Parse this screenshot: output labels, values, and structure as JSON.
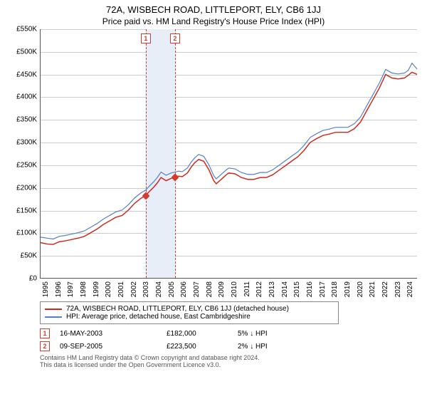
{
  "title_line1": "72A, WISBECH ROAD, LITTLEPORT, ELY, CB6 1JJ",
  "title_line2": "Price paid vs. HM Land Registry's House Price Index (HPI)",
  "chart": {
    "type": "line",
    "x_range": [
      1995,
      2025
    ],
    "y_range": [
      0,
      550000
    ],
    "y_ticks": [
      0,
      50000,
      100000,
      150000,
      200000,
      250000,
      300000,
      350000,
      400000,
      450000,
      500000,
      550000
    ],
    "y_tick_labels": [
      "£0",
      "£50K",
      "£100K",
      "£150K",
      "£200K",
      "£250K",
      "£300K",
      "£350K",
      "£400K",
      "£450K",
      "£500K",
      "£550K"
    ],
    "x_ticks": [
      1995,
      1996,
      1997,
      1998,
      1999,
      2000,
      2001,
      2002,
      2003,
      2004,
      2005,
      2006,
      2007,
      2008,
      2009,
      2010,
      2011,
      2012,
      2013,
      2014,
      2015,
      2016,
      2017,
      2018,
      2019,
      2020,
      2021,
      2022,
      2023,
      2024
    ],
    "grid_color": "#cccccc",
    "background_color": "#ffffff",
    "band": {
      "x_start": 2003.37,
      "x_end": 2005.69,
      "color": "#e8eef7"
    },
    "series": [
      {
        "label": "72A, WISBECH ROAD, LITTLEPORT, ELY, CB6 1JJ (detached house)",
        "color": "#cc2a1f",
        "width": 1.5,
        "data": [
          [
            1995.0,
            78
          ],
          [
            1995.5,
            75
          ],
          [
            1996.0,
            74
          ],
          [
            1996.5,
            80
          ],
          [
            1997.0,
            82
          ],
          [
            1997.5,
            85
          ],
          [
            1998.0,
            88
          ],
          [
            1998.5,
            92
          ],
          [
            1999.0,
            100
          ],
          [
            1999.5,
            108
          ],
          [
            2000.0,
            118
          ],
          [
            2000.5,
            126
          ],
          [
            2001.0,
            134
          ],
          [
            2001.5,
            138
          ],
          [
            2002.0,
            150
          ],
          [
            2002.5,
            165
          ],
          [
            2003.0,
            176
          ],
          [
            2003.37,
            182
          ],
          [
            2003.7,
            192
          ],
          [
            2004.0,
            200
          ],
          [
            2004.3,
            210
          ],
          [
            2004.6,
            222
          ],
          [
            2005.0,
            215
          ],
          [
            2005.4,
            220
          ],
          [
            2005.69,
            223.5
          ],
          [
            2006.0,
            225
          ],
          [
            2006.3,
            224
          ],
          [
            2006.7,
            232
          ],
          [
            2007.0,
            245
          ],
          [
            2007.3,
            255
          ],
          [
            2007.6,
            262
          ],
          [
            2008.0,
            258
          ],
          [
            2008.4,
            240
          ],
          [
            2008.8,
            215
          ],
          [
            2009.0,
            208
          ],
          [
            2009.4,
            218
          ],
          [
            2009.8,
            228
          ],
          [
            2010.0,
            232
          ],
          [
            2010.5,
            230
          ],
          [
            2011.0,
            222
          ],
          [
            2011.5,
            218
          ],
          [
            2012.0,
            218
          ],
          [
            2012.5,
            222
          ],
          [
            2013.0,
            222
          ],
          [
            2013.5,
            228
          ],
          [
            2014.0,
            238
          ],
          [
            2014.5,
            248
          ],
          [
            2015.0,
            258
          ],
          [
            2015.5,
            268
          ],
          [
            2016.0,
            282
          ],
          [
            2016.5,
            300
          ],
          [
            2017.0,
            308
          ],
          [
            2017.5,
            315
          ],
          [
            2018.0,
            318
          ],
          [
            2018.5,
            322
          ],
          [
            2019.0,
            322
          ],
          [
            2019.5,
            322
          ],
          [
            2020.0,
            330
          ],
          [
            2020.5,
            345
          ],
          [
            2021.0,
            370
          ],
          [
            2021.5,
            395
          ],
          [
            2022.0,
            420
          ],
          [
            2022.5,
            450
          ],
          [
            2023.0,
            442
          ],
          [
            2023.5,
            440
          ],
          [
            2024.0,
            442
          ],
          [
            2024.3,
            448
          ],
          [
            2024.6,
            455
          ],
          [
            2025.0,
            450
          ]
        ]
      },
      {
        "label": "HPI: Average price, detached house, East Cambridgeshire",
        "color": "#5a7fc4",
        "width": 1.2,
        "data": [
          [
            1995.0,
            90
          ],
          [
            1995.5,
            88
          ],
          [
            1996.0,
            86
          ],
          [
            1996.5,
            92
          ],
          [
            1997.0,
            94
          ],
          [
            1997.5,
            97
          ],
          [
            1998.0,
            100
          ],
          [
            1998.5,
            104
          ],
          [
            1999.0,
            112
          ],
          [
            1999.5,
            120
          ],
          [
            2000.0,
            130
          ],
          [
            2000.5,
            138
          ],
          [
            2001.0,
            146
          ],
          [
            2001.5,
            150
          ],
          [
            2002.0,
            162
          ],
          [
            2002.5,
            177
          ],
          [
            2003.0,
            188
          ],
          [
            2003.37,
            194
          ],
          [
            2003.7,
            204
          ],
          [
            2004.0,
            212
          ],
          [
            2004.3,
            222
          ],
          [
            2004.6,
            234
          ],
          [
            2005.0,
            227
          ],
          [
            2005.4,
            232
          ],
          [
            2005.69,
            234
          ],
          [
            2006.0,
            236
          ],
          [
            2006.3,
            235
          ],
          [
            2006.7,
            243
          ],
          [
            2007.0,
            256
          ],
          [
            2007.3,
            266
          ],
          [
            2007.6,
            273
          ],
          [
            2008.0,
            269
          ],
          [
            2008.4,
            251
          ],
          [
            2008.8,
            226
          ],
          [
            2009.0,
            219
          ],
          [
            2009.4,
            229
          ],
          [
            2009.8,
            239
          ],
          [
            2010.0,
            243
          ],
          [
            2010.5,
            241
          ],
          [
            2011.0,
            233
          ],
          [
            2011.5,
            229
          ],
          [
            2012.0,
            229
          ],
          [
            2012.5,
            233
          ],
          [
            2013.0,
            233
          ],
          [
            2013.5,
            239
          ],
          [
            2014.0,
            249
          ],
          [
            2014.5,
            259
          ],
          [
            2015.0,
            269
          ],
          [
            2015.5,
            279
          ],
          [
            2016.0,
            293
          ],
          [
            2016.5,
            311
          ],
          [
            2017.0,
            319
          ],
          [
            2017.5,
            326
          ],
          [
            2018.0,
            329
          ],
          [
            2018.5,
            333
          ],
          [
            2019.0,
            333
          ],
          [
            2019.5,
            333
          ],
          [
            2020.0,
            341
          ],
          [
            2020.5,
            356
          ],
          [
            2021.0,
            381
          ],
          [
            2021.5,
            406
          ],
          [
            2022.0,
            431
          ],
          [
            2022.5,
            461
          ],
          [
            2023.0,
            453
          ],
          [
            2023.5,
            451
          ],
          [
            2024.0,
            453
          ],
          [
            2024.3,
            459
          ],
          [
            2024.6,
            475
          ],
          [
            2025.0,
            462
          ]
        ]
      }
    ],
    "sale_markers": [
      {
        "n": "1",
        "x": 2003.37,
        "y": 182
      },
      {
        "n": "2",
        "x": 2005.69,
        "y": 223.5
      }
    ]
  },
  "legend": {
    "item1_color": "#cc2a1f",
    "item1_label": "72A, WISBECH ROAD, LITTLEPORT, ELY, CB6 1JJ (detached house)",
    "item2_color": "#5a7fc4",
    "item2_label": "HPI: Average price, detached house, East Cambridgeshire"
  },
  "sales": [
    {
      "n": "1",
      "date": "16-MAY-2003",
      "price": "£182,000",
      "hpi": "5% ↓ HPI"
    },
    {
      "n": "2",
      "date": "09-SEP-2005",
      "price": "£223,500",
      "hpi": "2% ↓ HPI"
    }
  ],
  "footer_line1": "Contains HM Land Registry data © Crown copyright and database right 2024.",
  "footer_line2": "This data is licensed under the Open Government Licence v3.0."
}
